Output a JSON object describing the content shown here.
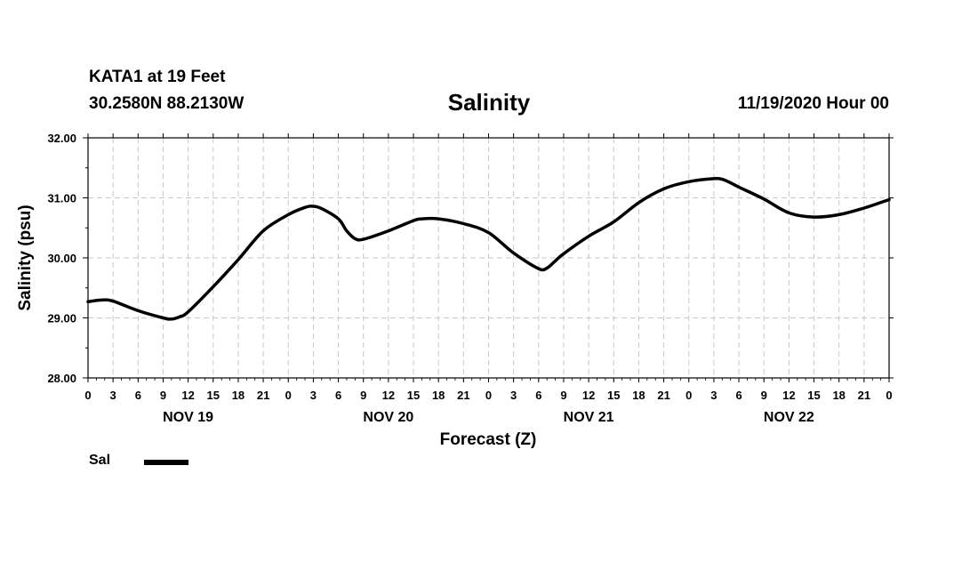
{
  "header": {
    "station": "KATA1 at 19 Feet",
    "coordinates": "30.2580N 88.2130W",
    "title": "Salinity",
    "timestamp": "11/19/2020 Hour 00"
  },
  "legend": {
    "label": "Sal",
    "color": "#000000"
  },
  "chart_data": {
    "type": "line",
    "title": "Salinity",
    "xlabel": "Forecast (Z)",
    "ylabel": "Salinity (psu)",
    "xlim": [
      0,
      96
    ],
    "ylim": [
      28.0,
      32.0
    ],
    "grid": true,
    "yticks": [
      {
        "value": 28.0,
        "label": "28.00"
      },
      {
        "value": 29.0,
        "label": "29.00"
      },
      {
        "value": 30.0,
        "label": "30.00"
      },
      {
        "value": 31.0,
        "label": "31.00"
      },
      {
        "value": 32.0,
        "label": "32.00"
      }
    ],
    "xtick_labels": [
      "0",
      "3",
      "6",
      "9",
      "12",
      "15",
      "18",
      "21",
      "0",
      "3",
      "6",
      "9",
      "12",
      "15",
      "18",
      "21",
      "0",
      "3",
      "6",
      "9",
      "12",
      "15",
      "18",
      "21",
      "0",
      "3",
      "6",
      "9",
      "12",
      "15",
      "18",
      "21",
      "0"
    ],
    "day_labels": [
      {
        "hour": 12,
        "label": "NOV 19"
      },
      {
        "hour": 36,
        "label": "NOV 20"
      },
      {
        "hour": 60,
        "label": "NOV 21"
      },
      {
        "hour": 84,
        "label": "NOV 22"
      }
    ],
    "series": [
      {
        "name": "Sal",
        "color": "#000000",
        "x": [
          0,
          1,
          2,
          3,
          6,
          9,
          10,
          11,
          12,
          15,
          18,
          21,
          24,
          26,
          27,
          28,
          30,
          31,
          32,
          33,
          36,
          39,
          40,
          42,
          45,
          48,
          51,
          54,
          55,
          56,
          57,
          60,
          63,
          66,
          69,
          72,
          75,
          76,
          77,
          78,
          81,
          84,
          87,
          90,
          93,
          96
        ],
        "y": [
          29.27,
          29.29,
          29.3,
          29.28,
          29.12,
          29.0,
          28.98,
          29.02,
          29.1,
          29.52,
          29.97,
          30.45,
          30.72,
          30.84,
          30.86,
          30.82,
          30.65,
          30.45,
          30.32,
          30.31,
          30.45,
          30.62,
          30.65,
          30.65,
          30.57,
          30.42,
          30.08,
          29.82,
          29.83,
          29.95,
          30.07,
          30.36,
          30.6,
          30.92,
          31.15,
          31.27,
          31.32,
          31.31,
          31.25,
          31.18,
          30.98,
          30.75,
          30.68,
          30.72,
          30.83,
          30.97
        ]
      }
    ]
  }
}
